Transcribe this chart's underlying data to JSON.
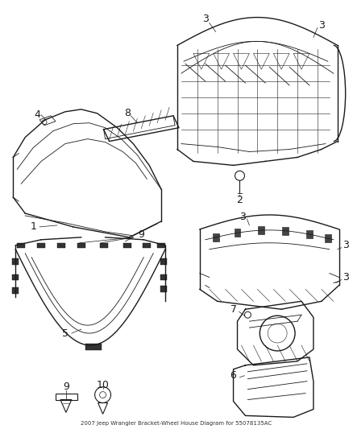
{
  "background_color": "#ffffff",
  "fig_width": 4.38,
  "fig_height": 5.33,
  "dpi": 100,
  "line_color": "#1a1a1a",
  "label_fontsize": 8,
  "label_color": "#1a1a1a"
}
